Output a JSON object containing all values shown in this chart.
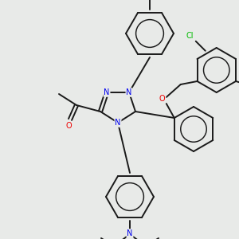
{
  "bg_color": "#e8eae8",
  "bond_color": "#1a1a1a",
  "N_color": "#0000ee",
  "O_color": "#ee0000",
  "Cl_color": "#00bb00",
  "lw": 1.4,
  "figsize": [
    3.0,
    3.0
  ],
  "dpi": 100,
  "xlim": [
    0,
    300
  ],
  "ylim": [
    0,
    300
  ]
}
